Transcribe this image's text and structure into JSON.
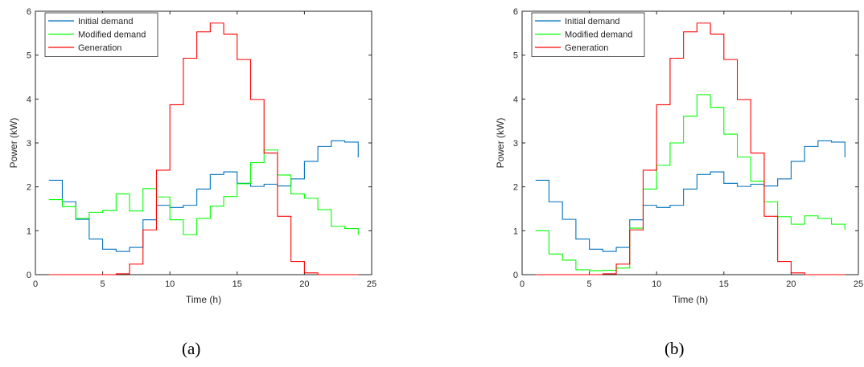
{
  "chart_data": [
    {
      "type": "line",
      "step": true,
      "panel_label": "(a)",
      "xlabel": "Time (h)",
      "ylabel": "Power (kW)",
      "xlim": [
        0,
        25
      ],
      "ylim": [
        0,
        6
      ],
      "xticks": [
        0,
        5,
        10,
        15,
        20,
        25
      ],
      "yticks": [
        0,
        1,
        2,
        3,
        4,
        5,
        6
      ],
      "grid": false,
      "legend_position": "top-left",
      "series": [
        {
          "name": "Initial demand",
          "color": "#0072BD",
          "x": [
            1,
            2,
            3,
            4,
            5,
            6,
            7,
            8,
            9,
            10,
            11,
            12,
            13,
            14,
            15,
            16,
            17,
            18,
            19,
            20,
            21,
            22,
            23,
            24
          ],
          "values": [
            2.15,
            1.66,
            1.26,
            0.81,
            0.58,
            0.53,
            0.62,
            1.25,
            1.58,
            1.53,
            1.58,
            1.95,
            2.28,
            2.34,
            2.08,
            2.01,
            2.06,
            2.02,
            2.18,
            2.58,
            2.92,
            3.05,
            3.02,
            2.67
          ]
        },
        {
          "name": "Modified demand",
          "color": "#00FF00",
          "x": [
            1,
            2,
            3,
            4,
            5,
            6,
            7,
            8,
            9,
            10,
            11,
            12,
            13,
            14,
            15,
            16,
            17,
            18,
            19,
            20,
            21,
            22,
            23,
            24
          ],
          "values": [
            1.71,
            1.55,
            1.28,
            1.42,
            1.46,
            1.84,
            1.45,
            1.96,
            1.77,
            1.25,
            0.91,
            1.28,
            1.56,
            1.78,
            2.07,
            2.55,
            2.84,
            2.27,
            1.84,
            1.74,
            1.48,
            1.1,
            1.05,
            0.9
          ]
        },
        {
          "name": "Generation",
          "color": "#FF0000",
          "x": [
            1,
            2,
            3,
            4,
            5,
            6,
            7,
            8,
            9,
            10,
            11,
            12,
            13,
            14,
            15,
            16,
            17,
            18,
            19,
            20,
            21,
            22,
            23,
            24
          ],
          "values": [
            0,
            0,
            0,
            0,
            0,
            0.02,
            0.24,
            1.02,
            2.38,
            3.87,
            4.93,
            5.53,
            5.73,
            5.48,
            4.9,
            3.99,
            2.77,
            1.33,
            0.3,
            0.04,
            0,
            0,
            0,
            0
          ]
        }
      ]
    },
    {
      "type": "line",
      "step": true,
      "panel_label": "(b)",
      "xlabel": "Time (h)",
      "ylabel": "Power (kW)",
      "xlim": [
        0,
        25
      ],
      "ylim": [
        0,
        6
      ],
      "xticks": [
        0,
        5,
        10,
        15,
        20,
        25
      ],
      "yticks": [
        0,
        1,
        2,
        3,
        4,
        5,
        6
      ],
      "grid": false,
      "legend_position": "top-left",
      "series": [
        {
          "name": "Initial demand",
          "color": "#0072BD",
          "x": [
            1,
            2,
            3,
            4,
            5,
            6,
            7,
            8,
            9,
            10,
            11,
            12,
            13,
            14,
            15,
            16,
            17,
            18,
            19,
            20,
            21,
            22,
            23,
            24
          ],
          "values": [
            2.15,
            1.66,
            1.26,
            0.81,
            0.58,
            0.53,
            0.62,
            1.25,
            1.58,
            1.53,
            1.58,
            1.95,
            2.28,
            2.34,
            2.08,
            2.01,
            2.06,
            2.02,
            2.18,
            2.58,
            2.92,
            3.05,
            3.02,
            2.67
          ]
        },
        {
          "name": "Modified demand",
          "color": "#00FF00",
          "x": [
            1,
            2,
            3,
            4,
            5,
            6,
            7,
            8,
            9,
            10,
            11,
            12,
            13,
            14,
            15,
            16,
            17,
            18,
            19,
            20,
            21,
            22,
            23,
            24
          ],
          "values": [
            1.0,
            0.47,
            0.33,
            0.11,
            0.09,
            0.1,
            0.15,
            1.06,
            1.95,
            2.49,
            3.0,
            3.61,
            4.1,
            3.81,
            3.2,
            2.68,
            2.13,
            1.66,
            1.32,
            1.15,
            1.34,
            1.28,
            1.15,
            1.02
          ]
        },
        {
          "name": "Generation",
          "color": "#FF0000",
          "x": [
            1,
            2,
            3,
            4,
            5,
            6,
            7,
            8,
            9,
            10,
            11,
            12,
            13,
            14,
            15,
            16,
            17,
            18,
            19,
            20,
            21,
            22,
            23,
            24
          ],
          "values": [
            0,
            0,
            0,
            0,
            0,
            0.02,
            0.24,
            1.02,
            2.38,
            3.87,
            4.93,
            5.53,
            5.73,
            5.48,
            4.9,
            3.99,
            2.77,
            1.33,
            0.3,
            0.04,
            0,
            0,
            0,
            0
          ]
        }
      ]
    }
  ],
  "captions": {
    "a": "(a)",
    "b": "(b)"
  }
}
